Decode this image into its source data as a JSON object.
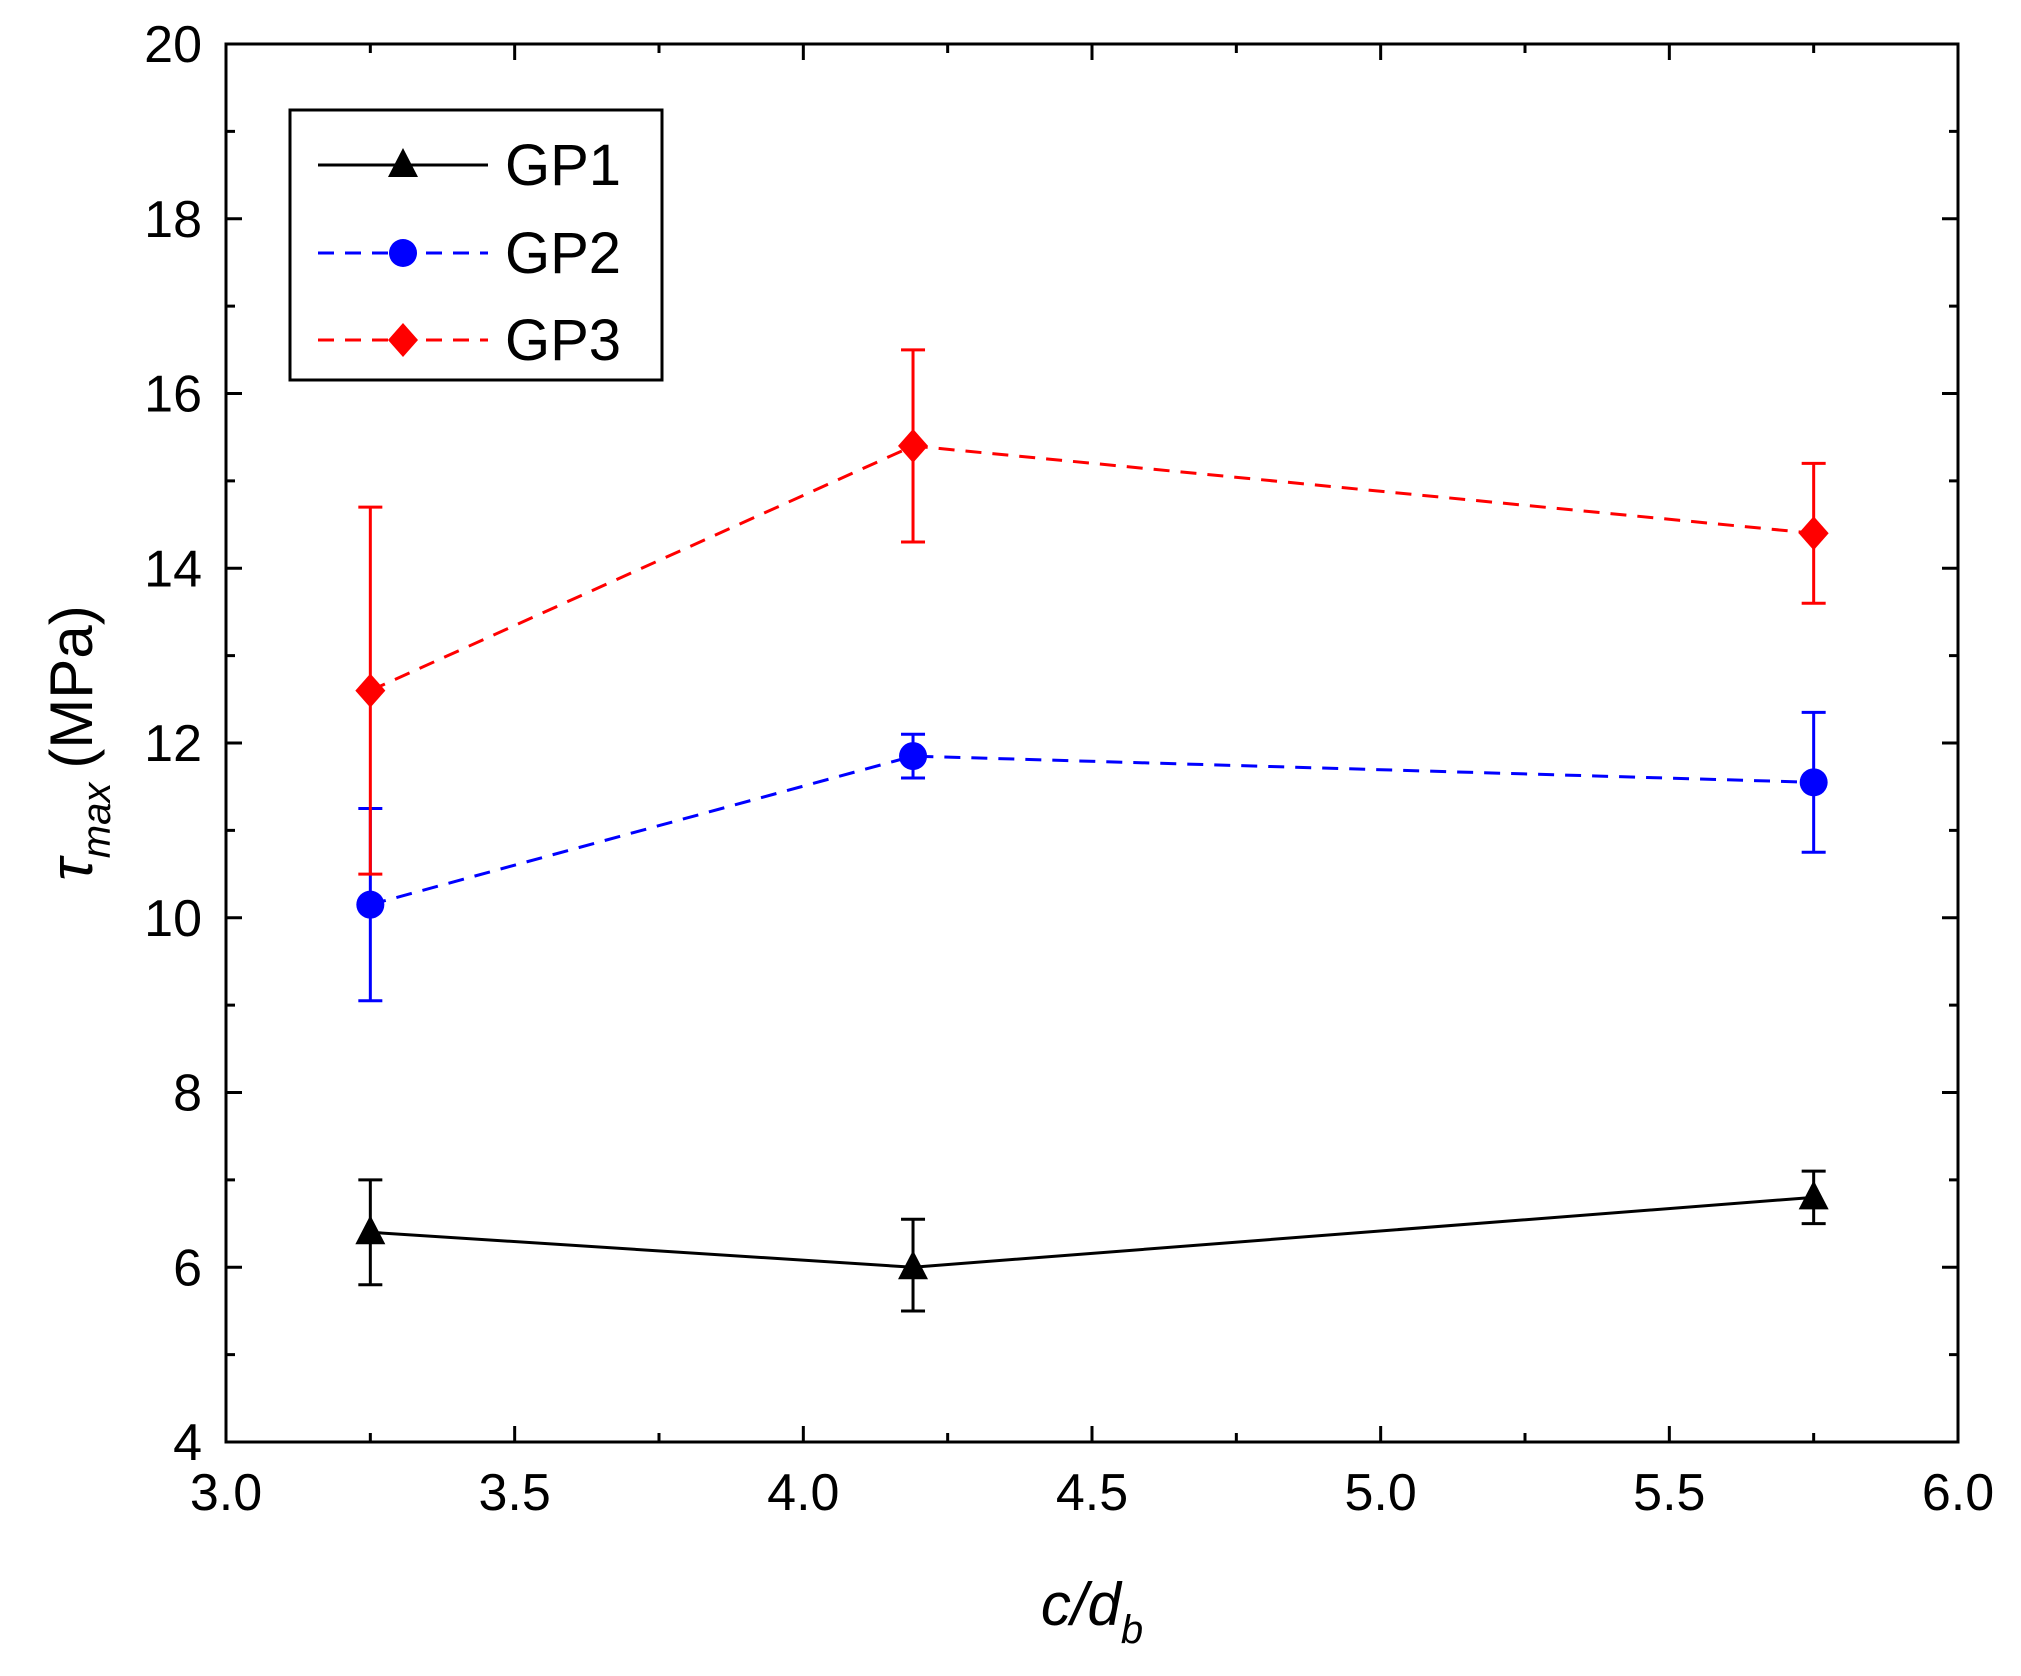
{
  "chart_data": {
    "type": "line",
    "title": "",
    "xlabel": {
      "main": "c/d",
      "sub": "b"
    },
    "ylabel": {
      "symbol": "τ",
      "sub": "max",
      "unit": "(MPa)"
    },
    "xlim": [
      3.0,
      6.0
    ],
    "ylim": [
      4,
      20
    ],
    "x_ticks": [
      "3.0",
      "3.5",
      "4.0",
      "4.5",
      "5.0",
      "5.5",
      "6.0"
    ],
    "x_tick_values": [
      3.0,
      3.5,
      4.0,
      4.5,
      5.0,
      5.5,
      6.0
    ],
    "y_ticks": [
      "4",
      "6",
      "8",
      "10",
      "12",
      "14",
      "16",
      "18",
      "20"
    ],
    "y_tick_values": [
      4,
      6,
      8,
      10,
      12,
      14,
      16,
      18,
      20
    ],
    "grid": false,
    "legend_position": "top-left",
    "x": [
      3.25,
      4.19,
      5.75
    ],
    "series": [
      {
        "name": "GP1",
        "color": "#000000",
        "line_style": "solid",
        "marker": "triangle",
        "values": [
          6.4,
          6.0,
          6.8
        ],
        "error_low": [
          5.8,
          5.5,
          6.5
        ],
        "error_high": [
          7.0,
          6.55,
          7.1
        ]
      },
      {
        "name": "GP2",
        "color": "#0000ff",
        "line_style": "dashed",
        "marker": "circle",
        "values": [
          10.15,
          11.85,
          11.55
        ],
        "error_low": [
          9.05,
          11.6,
          10.75
        ],
        "error_high": [
          11.25,
          12.1,
          12.35
        ]
      },
      {
        "name": "GP3",
        "color": "#ff0000",
        "line_style": "dashed",
        "marker": "diamond",
        "values": [
          12.6,
          15.4,
          14.4
        ],
        "error_low": [
          10.5,
          14.3,
          13.6
        ],
        "error_high": [
          14.7,
          16.5,
          15.2
        ]
      }
    ]
  }
}
